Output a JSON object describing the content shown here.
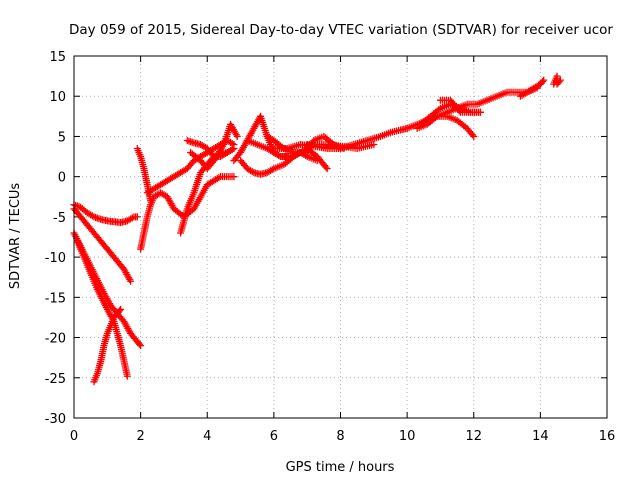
{
  "chart_data": {
    "type": "scatter",
    "title": "Day 059 of 2015, Sidereal Day-to-day VTEC variation (SDTVAR) for receiver ucor",
    "xlabel": "GPS time / hours",
    "ylabel": "SDTVAR / TECUs",
    "xlim": [
      0,
      16
    ],
    "ylim": [
      -30,
      15
    ],
    "xticks": [
      0,
      2,
      4,
      6,
      8,
      10,
      12,
      14,
      16
    ],
    "yticks": [
      -30,
      -25,
      -20,
      -15,
      -10,
      -5,
      0,
      5,
      10,
      15
    ],
    "grid": true,
    "grid_style": "dotted",
    "marker": "plus",
    "color": "#ff0000",
    "series": [
      {
        "x": [
          0.0,
          0.2,
          0.4,
          0.6,
          0.8,
          1.0,
          1.2,
          1.4,
          1.6,
          1.8,
          1.9
        ],
        "y": [
          -3.5,
          -3.8,
          -4.5,
          -5.0,
          -5.3,
          -5.5,
          -5.6,
          -5.7,
          -5.5,
          -5.0,
          -5.0
        ]
      },
      {
        "x": [
          0.0,
          0.3,
          0.6,
          0.9,
          1.2,
          1.5,
          1.7
        ],
        "y": [
          -4.0,
          -5.5,
          -7.0,
          -8.5,
          -10.0,
          -11.5,
          -13.0
        ]
      },
      {
        "x": [
          0.0,
          0.3,
          0.6,
          0.9,
          1.1,
          1.3,
          1.5,
          1.7,
          1.9,
          2.0
        ],
        "y": [
          -7.0,
          -9.5,
          -12.0,
          -14.5,
          -16.0,
          -17.0,
          -18.0,
          -19.5,
          -20.5,
          -21.0
        ]
      },
      {
        "x": [
          0.1,
          0.4,
          0.7,
          1.0,
          1.2,
          1.4,
          1.6
        ],
        "y": [
          -8.0,
          -11.0,
          -14.0,
          -16.5,
          -18.0,
          -21.0,
          -24.8
        ]
      },
      {
        "x": [
          0.6,
          0.7,
          0.8,
          0.9,
          1.0,
          1.1,
          1.2,
          1.3,
          1.4
        ],
        "y": [
          -25.5,
          -24.5,
          -23.0,
          -21.0,
          -19.5,
          -18.5,
          -17.5,
          -17.0,
          -16.5
        ]
      },
      {
        "x": [
          1.9,
          2.0,
          2.1,
          2.2,
          2.3
        ],
        "y": [
          3.5,
          2.5,
          1.0,
          -1.0,
          -3.0
        ]
      },
      {
        "x": [
          2.0,
          2.1,
          2.2,
          2.3,
          2.4,
          2.6,
          2.8,
          3.0,
          3.3,
          3.6,
          4.0,
          4.4,
          4.8
        ],
        "y": [
          -9.0,
          -7.0,
          -5.0,
          -3.5,
          -2.5,
          -2.0,
          -2.5,
          -4.0,
          -5.0,
          -4.0,
          -1.0,
          0.0,
          0.0
        ]
      },
      {
        "x": [
          2.2,
          2.4,
          2.6,
          2.8,
          3.0,
          3.2,
          3.4,
          3.6,
          3.8,
          4.0,
          4.2,
          4.4,
          4.6,
          4.8
        ],
        "y": [
          -2.0,
          -1.5,
          -1.0,
          -0.5,
          0.0,
          0.5,
          1.0,
          2.0,
          2.5,
          3.0,
          3.5,
          4.0,
          4.5,
          4.0
        ]
      },
      {
        "x": [
          3.2,
          3.4,
          3.6,
          3.8,
          4.0,
          4.2,
          4.4,
          4.6,
          4.8
        ],
        "y": [
          -7.0,
          -4.0,
          -2.0,
          0.5,
          1.5,
          2.5,
          2.8,
          3.0,
          3.5
        ]
      },
      {
        "x": [
          3.4,
          3.6,
          3.8,
          4.0,
          4.2,
          4.4,
          4.6,
          4.8
        ],
        "y": [
          4.5,
          4.2,
          4.0,
          3.5,
          2.5,
          2.5,
          3.0,
          3.5
        ]
      },
      {
        "x": [
          3.5,
          3.8,
          4.0,
          4.2,
          4.5,
          4.7,
          4.9
        ],
        "y": [
          3.0,
          2.0,
          1.0,
          2.0,
          4.0,
          6.5,
          5.0
        ]
      },
      {
        "x": [
          4.8,
          5.0,
          5.2,
          5.4,
          5.6,
          5.8,
          6.0,
          6.2,
          6.4
        ],
        "y": [
          2.0,
          3.0,
          4.5,
          6.0,
          7.5,
          5.0,
          3.0,
          2.5,
          2.5
        ]
      },
      {
        "x": [
          5.0,
          5.2,
          5.4,
          5.6,
          5.8,
          6.0,
          6.3,
          6.6,
          7.0,
          7.3,
          7.6
        ],
        "y": [
          2.0,
          1.0,
          0.5,
          0.3,
          0.5,
          1.0,
          1.5,
          2.5,
          3.5,
          2.5,
          1.0
        ]
      },
      {
        "x": [
          5.2,
          5.5,
          5.8,
          6.0,
          6.2,
          6.5,
          6.8,
          7.0,
          7.3
        ],
        "y": [
          4.5,
          4.0,
          3.5,
          3.0,
          2.5,
          2.5,
          3.0,
          2.5,
          2.0
        ]
      },
      {
        "x": [
          5.8,
          6.0,
          6.3,
          6.6,
          7.0,
          7.2,
          7.5,
          7.8,
          8.1
        ],
        "y": [
          5.0,
          4.5,
          3.5,
          3.0,
          3.0,
          4.5,
          5.0,
          4.0,
          3.5
        ]
      },
      {
        "x": [
          6.0,
          6.4,
          6.8,
          7.2,
          7.6,
          8.0,
          8.4,
          8.8,
          9.2,
          9.5,
          9.8,
          10.0
        ],
        "y": [
          3.5,
          3.5,
          4.0,
          3.8,
          3.5,
          3.5,
          4.0,
          4.5,
          5.0,
          5.5,
          5.8,
          6.0
        ]
      },
      {
        "x": [
          7.0,
          7.5,
          8.0,
          8.5,
          9.0
        ],
        "y": [
          4.0,
          4.0,
          3.8,
          3.5,
          4.0
        ]
      },
      {
        "x": [
          10.0,
          10.3,
          10.6,
          10.9,
          11.2,
          11.5,
          11.8,
          12.1,
          12.4,
          12.7,
          13.0,
          13.3,
          13.6,
          13.9
        ],
        "y": [
          6.0,
          6.5,
          7.0,
          7.5,
          8.0,
          8.5,
          9.0,
          9.0,
          9.5,
          10.0,
          10.5,
          10.5,
          10.5,
          11.0
        ]
      },
      {
        "x": [
          10.3,
          10.6,
          10.9,
          11.2,
          11.5,
          11.8,
          12.0
        ],
        "y": [
          6.0,
          6.5,
          7.5,
          7.5,
          7.0,
          6.0,
          5.0
        ]
      },
      {
        "x": [
          10.4,
          10.7,
          11.0,
          11.3,
          11.6,
          11.9,
          12.2
        ],
        "y": [
          6.5,
          7.5,
          8.5,
          9.0,
          8.5,
          8.0,
          8.0
        ]
      },
      {
        "x": [
          11.0,
          11.3,
          11.6,
          11.9,
          12.2
        ],
        "y": [
          9.5,
          9.5,
          8.0,
          8.0,
          8.0
        ]
      },
      {
        "x": [
          13.4,
          13.6,
          13.8,
          14.0,
          14.1
        ],
        "y": [
          10.0,
          10.5,
          11.0,
          11.5,
          12.0
        ]
      },
      {
        "x": [
          14.4,
          14.5,
          14.5,
          14.6
        ],
        "y": [
          11.5,
          12.5,
          11.5,
          12.0
        ]
      }
    ]
  }
}
